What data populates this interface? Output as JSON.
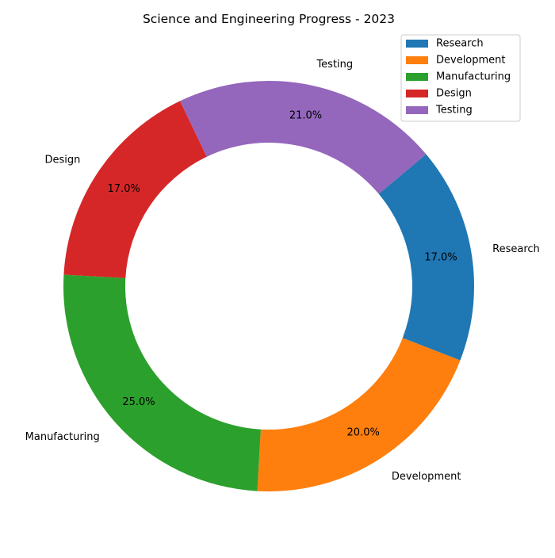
{
  "chart_data": {
    "type": "pie",
    "variant": "donut",
    "title": "Science and Engineering Progress - 2023",
    "categories": [
      "Research",
      "Development",
      "Manufacturing",
      "Design",
      "Testing"
    ],
    "values": [
      17.0,
      20.0,
      25.0,
      17.0,
      21.0
    ],
    "percent_labels": [
      "17.0%",
      "20.0%",
      "25.0%",
      "17.0%",
      "21.0%"
    ],
    "colors": [
      "#1f77b4",
      "#ff7f0e",
      "#2ca02c",
      "#d62728",
      "#9467bd"
    ],
    "start_angle_deg": 40,
    "direction": "clockwise",
    "legend": {
      "placement": "top-right",
      "entries": [
        "Research",
        "Development",
        "Manufacturing",
        "Design",
        "Testing"
      ]
    }
  }
}
